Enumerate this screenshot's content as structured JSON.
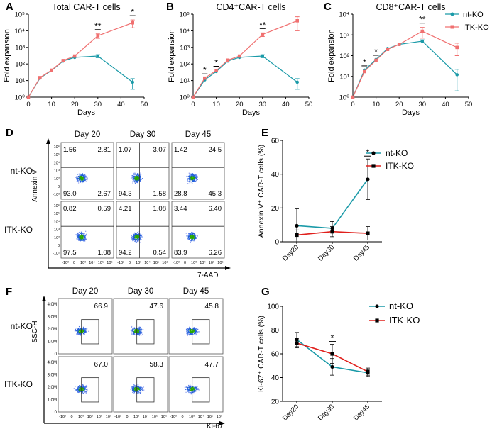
{
  "colors": {
    "nt": "#1a9aa8",
    "itk": "#f07070",
    "itk_dark": "#e03030",
    "black": "#000000",
    "ntG": "#1a9aa8",
    "itkG": "#e0201c"
  },
  "panel_labels": [
    "A",
    "B",
    "C",
    "D",
    "E",
    "F",
    "G"
  ],
  "legend_top": {
    "nt": "nt-KO",
    "itk": "ITK-KO"
  },
  "chart_data": [
    {
      "id": "A",
      "type": "line",
      "title": "Total CAR-T cells",
      "xlabel": "Days",
      "ylabel": "Fold expansion",
      "xlim": [
        0,
        50
      ],
      "ylim_log10": [
        0,
        5
      ],
      "xticks": [
        "0",
        "10",
        "20",
        "30",
        "40",
        "50"
      ],
      "series": [
        {
          "name": "nt-KO",
          "x": [
            0,
            5,
            10,
            15,
            20,
            30,
            45
          ],
          "y": [
            1,
            14,
            40,
            150,
            250,
            300,
            8
          ],
          "err": [
            0,
            0,
            0,
            0,
            0,
            60,
            5
          ]
        },
        {
          "name": "ITK-KO",
          "x": [
            0,
            5,
            10,
            15,
            20,
            30,
            45
          ],
          "y": [
            1,
            15,
            42,
            160,
            300,
            5000,
            30000
          ],
          "err": [
            0,
            0,
            0,
            0,
            0,
            1500,
            15000
          ]
        }
      ],
      "annotations": [
        {
          "x": 30,
          "label": "**"
        },
        {
          "x": 45,
          "label": "*"
        }
      ]
    },
    {
      "id": "B",
      "type": "line",
      "title": "CD4⁺CAR-T cells",
      "xlabel": "Days",
      "ylabel": "Fold expansion",
      "xlim": [
        0,
        50
      ],
      "ylim_log10": [
        0,
        5
      ],
      "xticks": [
        "0",
        "10",
        "20",
        "30",
        "40",
        "50"
      ],
      "series": [
        {
          "name": "nt-KO",
          "x": [
            0,
            5,
            10,
            15,
            20,
            30,
            45
          ],
          "y": [
            1,
            11,
            35,
            150,
            250,
            300,
            8
          ],
          "err": [
            0,
            0,
            0,
            0,
            0,
            60,
            5
          ]
        },
        {
          "name": "ITK-KO",
          "x": [
            0,
            5,
            10,
            15,
            20,
            30,
            45
          ],
          "y": [
            1,
            14,
            40,
            170,
            300,
            6000,
            40000
          ],
          "err": [
            0,
            0,
            0,
            0,
            0,
            1500,
            30000
          ]
        }
      ],
      "annotations": [
        {
          "x": 5,
          "label": "*"
        },
        {
          "x": 10,
          "label": "*"
        },
        {
          "x": 30,
          "label": "**"
        }
      ]
    },
    {
      "id": "C",
      "type": "line",
      "title": "CD8⁺CAR-T cells",
      "xlabel": "Days",
      "ylabel": "Fold expansion",
      "xlim": [
        0,
        50
      ],
      "ylim_log10": [
        0,
        4
      ],
      "xticks": [
        "0",
        "10",
        "20",
        "30",
        "40",
        "50"
      ],
      "series": [
        {
          "name": "nt-KO",
          "x": [
            0,
            5,
            10,
            15,
            20,
            30,
            45
          ],
          "y": [
            1,
            20,
            65,
            220,
            350,
            500,
            12
          ],
          "err": [
            0,
            0,
            0,
            0,
            0,
            80,
            10
          ]
        },
        {
          "name": "ITK-KO",
          "x": [
            0,
            5,
            10,
            15,
            20,
            30,
            45
          ],
          "y": [
            1,
            17,
            60,
            200,
            350,
            1500,
            250
          ],
          "err": [
            0,
            0,
            0,
            0,
            0,
            800,
            150
          ]
        }
      ],
      "annotations": [
        {
          "x": 5,
          "label": "*"
        },
        {
          "x": 10,
          "label": "*"
        },
        {
          "x": 30,
          "label": "**"
        }
      ]
    },
    {
      "id": "E",
      "type": "line",
      "ylabel": "Annexin V⁺ CAR-T cells (%)",
      "categories": [
        "Day20",
        "Day30",
        "Day45"
      ],
      "ylim": [
        0,
        60
      ],
      "yticks": [
        "0",
        "20",
        "40",
        "60"
      ],
      "series": [
        {
          "name": "nt-KO",
          "values": [
            9.5,
            8,
            37
          ],
          "err": [
            10,
            4,
            12
          ]
        },
        {
          "name": "ITK-KO",
          "values": [
            4,
            6,
            5
          ],
          "err": [
            3,
            3,
            4
          ]
        }
      ],
      "annotations": [
        {
          "category": "Day45",
          "label": "*"
        }
      ]
    },
    {
      "id": "G",
      "type": "line",
      "ylabel": "Ki-67⁺ CAR-T cells (%)",
      "categories": [
        "Day20",
        "Day30",
        "Day45"
      ],
      "ylim": [
        20,
        100
      ],
      "yticks": [
        "20",
        "40",
        "60",
        "80",
        "100"
      ],
      "series": [
        {
          "name": "nt-KO",
          "values": [
            72,
            49,
            44
          ],
          "err": [
            6,
            7,
            3
          ]
        },
        {
          "name": "ITK-KO",
          "values": [
            69,
            60,
            45
          ],
          "err": [
            4,
            8,
            3
          ]
        }
      ],
      "annotations": [
        {
          "category": "Day30",
          "label": "*"
        }
      ]
    }
  ],
  "flow_D": {
    "days": [
      "Day 20",
      "Day 30",
      "Day 45"
    ],
    "rows": [
      "nt-KO",
      "ITK-KO"
    ],
    "y_axis_label": "Annexin V",
    "x_axis_label": "7-AAD",
    "y_ticks": [
      "10⁶",
      "10⁵",
      "10⁴",
      "10³",
      "10²",
      "0",
      "-10²"
    ],
    "x_ticks": [
      "-10²",
      "0",
      "10³",
      "10⁴",
      "10⁵",
      "10⁶"
    ],
    "quadrants": [
      [
        [
          "1.56",
          "2.81",
          "93.0",
          "2.67"
        ],
        [
          "1.07",
          "3.07",
          "94.3",
          "1.58"
        ],
        [
          "1.42",
          "24.5",
          "28.8",
          "45.3"
        ]
      ],
      [
        [
          "0.82",
          "0.59",
          "97.5",
          "1.08"
        ],
        [
          "4.21",
          "1.08",
          "94.2",
          "0.54"
        ],
        [
          "3.44",
          "6.40",
          "83.9",
          "6.26"
        ]
      ]
    ]
  },
  "flow_F": {
    "days": [
      "Day 20",
      "Day 30",
      "Day 45"
    ],
    "rows": [
      "nt-KO",
      "ITK-KO"
    ],
    "y_axis_label": "SSC-H",
    "x_axis_label": "Ki-67",
    "y_ticks": [
      "4.0M",
      "3.0M",
      "2.0M",
      "1.0M",
      "0"
    ],
    "x_ticks": [
      "-10²",
      "0",
      "10³",
      "10⁴",
      "10⁵",
      "10⁶"
    ],
    "gates": [
      [
        "66.9",
        "47.6",
        "45.8"
      ],
      [
        "67.0",
        "58.3",
        "47.7"
      ]
    ]
  }
}
